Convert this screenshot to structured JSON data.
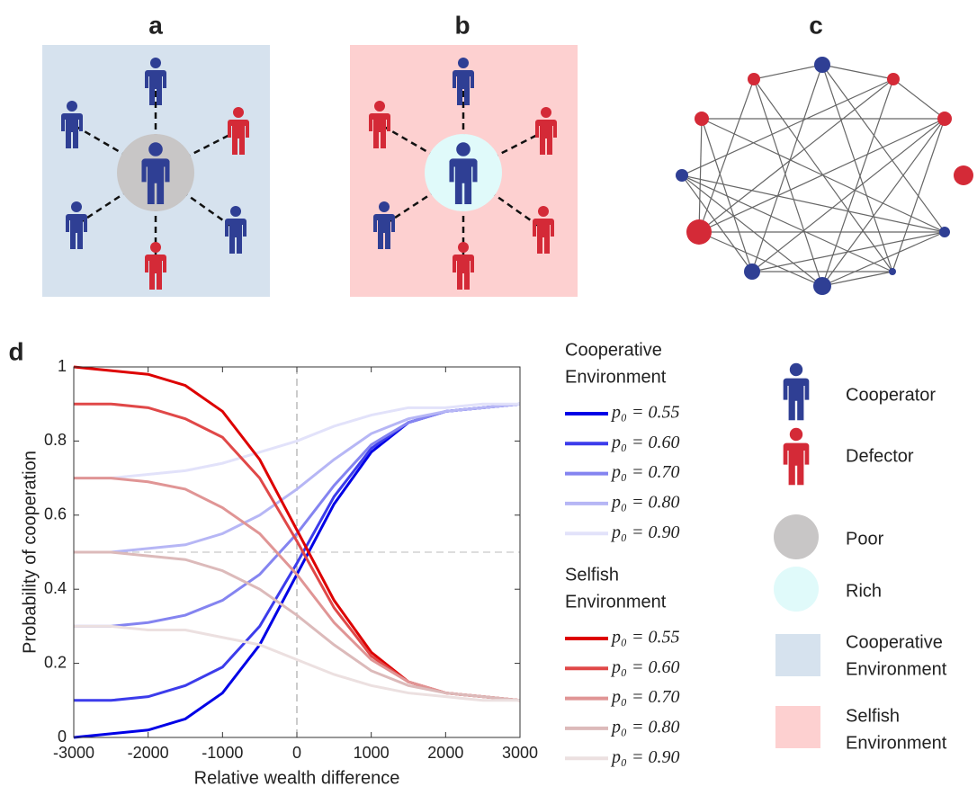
{
  "panel_labels": [
    "a",
    "b",
    "c",
    "d"
  ],
  "legend": {
    "cooperator": "Cooperator",
    "defector": "Defector",
    "poor": "Poor",
    "rich": "Rich",
    "cooperative_environment": [
      "Cooperative",
      "Environment"
    ],
    "selfish_environment": [
      "Selfish",
      "Environment"
    ]
  },
  "chart_data": {
    "type": "line",
    "xlabel": "Relative wealth difference",
    "ylabel": "Probability of cooperation",
    "x": [
      -3000,
      -2500,
      -2000,
      -1500,
      -1000,
      -500,
      0,
      500,
      1000,
      1500,
      2000,
      2500,
      3000
    ],
    "xlim": [
      -3000,
      3000
    ],
    "xticks": [
      -3000,
      -2000,
      -1000,
      0,
      1000,
      2000,
      3000
    ],
    "ylim": [
      0,
      1
    ],
    "yticks": [
      0,
      0.2,
      0.4,
      0.6,
      0.8,
      1
    ],
    "vlines": [
      0
    ],
    "hlines": [
      0.5
    ],
    "legend_titles": [
      [
        "Cooperative",
        "Environment"
      ],
      [
        "Selfish",
        "Environment"
      ]
    ],
    "series": [
      {
        "name": "p₀ = 0.55",
        "color": "#0000e6",
        "group": 0,
        "values": [
          0.0,
          0.01,
          0.02,
          0.05,
          0.12,
          0.25,
          0.44,
          0.63,
          0.77,
          0.85,
          0.88,
          0.89,
          0.9
        ]
      },
      {
        "name": "p₀ = 0.60",
        "color": "#3c3ceb",
        "group": 0,
        "values": [
          0.1,
          0.1,
          0.11,
          0.14,
          0.19,
          0.3,
          0.47,
          0.65,
          0.78,
          0.85,
          0.88,
          0.89,
          0.9
        ]
      },
      {
        "name": "p₀ = 0.70",
        "color": "#8484f0",
        "group": 0,
        "values": [
          0.3,
          0.3,
          0.31,
          0.33,
          0.37,
          0.44,
          0.55,
          0.68,
          0.79,
          0.85,
          0.88,
          0.89,
          0.9
        ]
      },
      {
        "name": "p₀ = 0.80",
        "color": "#b6b6f5",
        "group": 0,
        "values": [
          0.5,
          0.5,
          0.51,
          0.52,
          0.55,
          0.6,
          0.67,
          0.75,
          0.82,
          0.86,
          0.88,
          0.89,
          0.9
        ]
      },
      {
        "name": "p₀ = 0.90",
        "color": "#e2e2fa",
        "group": 0,
        "values": [
          0.7,
          0.7,
          0.71,
          0.72,
          0.74,
          0.77,
          0.8,
          0.84,
          0.87,
          0.89,
          0.89,
          0.9,
          0.9
        ]
      },
      {
        "name": "p₀ = 0.55",
        "color": "#dd0000",
        "group": 1,
        "values": [
          1.0,
          0.99,
          0.98,
          0.95,
          0.88,
          0.75,
          0.56,
          0.37,
          0.23,
          0.15,
          0.12,
          0.11,
          0.1
        ]
      },
      {
        "name": "p₀ = 0.60",
        "color": "#e04848",
        "group": 1,
        "values": [
          0.9,
          0.9,
          0.89,
          0.86,
          0.81,
          0.7,
          0.53,
          0.35,
          0.22,
          0.15,
          0.12,
          0.11,
          0.1
        ]
      },
      {
        "name": "p₀ = 0.70",
        "color": "#e09595",
        "group": 1,
        "values": [
          0.7,
          0.7,
          0.69,
          0.67,
          0.62,
          0.55,
          0.44,
          0.31,
          0.21,
          0.15,
          0.12,
          0.11,
          0.1
        ]
      },
      {
        "name": "p₀ = 0.80",
        "color": "#dcbaba",
        "group": 1,
        "values": [
          0.5,
          0.5,
          0.49,
          0.48,
          0.45,
          0.4,
          0.33,
          0.25,
          0.18,
          0.14,
          0.12,
          0.11,
          0.1
        ]
      },
      {
        "name": "p₀ = 0.90",
        "color": "#ece0e0",
        "group": 1,
        "values": [
          0.3,
          0.3,
          0.29,
          0.29,
          0.27,
          0.25,
          0.21,
          0.17,
          0.14,
          0.12,
          0.11,
          0.1,
          0.1
        ]
      }
    ]
  }
}
